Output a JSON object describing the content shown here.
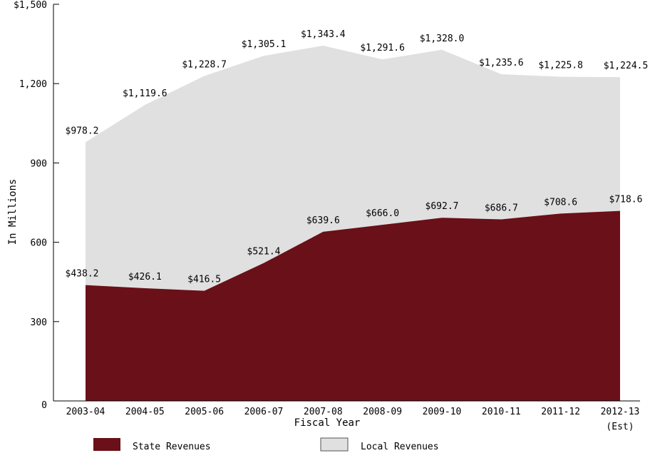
{
  "chart_data": {
    "type": "area",
    "stacked": false,
    "title": "",
    "xlabel": "Fiscal Year",
    "ylabel": "In Millions",
    "categories": [
      "2003-04",
      "2004-05",
      "2005-06",
      "2006-07",
      "2007-08",
      "2008-09",
      "2009-10",
      "2010-11",
      "2011-12",
      "2012-13"
    ],
    "category_suffix": [
      "",
      "",
      "",
      "",
      "",
      "",
      "",
      "",
      "",
      "(Est)"
    ],
    "ylim": [
      0,
      1500
    ],
    "yticks": [
      0,
      300,
      600,
      900,
      1200,
      1500
    ],
    "ytick_labels": [
      "0",
      "300",
      "600",
      "900",
      "1,200",
      "$1,500"
    ],
    "grid": false,
    "legend_position": "bottom",
    "series": [
      {
        "name": "State Revenues",
        "color": "#6a1018",
        "values": [
          438.2,
          426.1,
          416.5,
          521.4,
          639.6,
          666.0,
          692.7,
          686.7,
          708.6,
          718.6
        ],
        "labels": [
          "$438.2",
          "$426.1",
          "$416.5",
          "$521.4",
          "$639.6",
          "$666.0",
          "$692.7",
          "$686.7",
          "$708.6",
          "$718.6"
        ]
      },
      {
        "name": "Local Revenues",
        "color": "#e0e0e0",
        "values": [
          978.2,
          1119.6,
          1228.7,
          1305.1,
          1343.4,
          1291.6,
          1328.0,
          1235.6,
          1225.8,
          1224.5
        ],
        "labels": [
          "$978.2",
          "$1,119.6",
          "$1,228.7",
          "$1,305.1",
          "$1,343.4",
          "$1,291.6",
          "$1,328.0",
          "$1,235.6",
          "$1,225.8",
          "$1,224.5"
        ]
      }
    ]
  }
}
